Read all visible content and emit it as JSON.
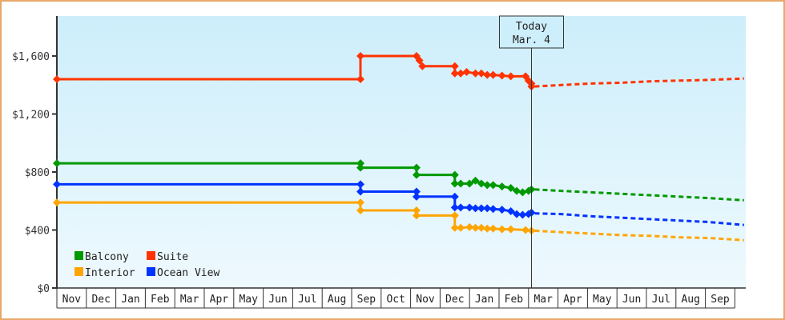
{
  "chart_data": {
    "type": "line",
    "title": "",
    "xlabel": "",
    "ylabel": "",
    "ylim": [
      0,
      1875
    ],
    "grid": false,
    "legend_position": "bottom-left inside plot",
    "y_ticks": [
      {
        "value": 0,
        "label": "$0"
      },
      {
        "value": 400,
        "label": "$400"
      },
      {
        "value": 800,
        "label": "$800"
      },
      {
        "value": 1200,
        "label": "$1,200"
      },
      {
        "value": 1600,
        "label": "$1,600"
      }
    ],
    "x_ticks": [
      "Nov",
      "Dec",
      "Jan",
      "Feb",
      "Mar",
      "Apr",
      "May",
      "Jun",
      "Jul",
      "Aug",
      "Sep",
      "Oct",
      "Nov",
      "Dec",
      "Jan",
      "Feb",
      "Mar",
      "Apr",
      "May",
      "Jun",
      "Jul",
      "Aug",
      "Sep"
    ],
    "annotation": {
      "label_line1": "Today",
      "label_line2": "Mar. 4",
      "x_month_index": 16.1
    },
    "series": [
      {
        "name": "Suite",
        "color": "#ff3300",
        "history": [
          [
            0,
            1440
          ],
          [
            10.3,
            1440
          ],
          [
            10.3,
            1600
          ],
          [
            12.2,
            1600
          ],
          [
            12.3,
            1570
          ],
          [
            12.4,
            1530
          ],
          [
            13.5,
            1530
          ],
          [
            13.5,
            1480
          ],
          [
            13.7,
            1480
          ],
          [
            13.9,
            1490
          ],
          [
            14.2,
            1480
          ],
          [
            14.4,
            1480
          ],
          [
            14.6,
            1470
          ],
          [
            14.8,
            1470
          ],
          [
            15.1,
            1465
          ],
          [
            15.4,
            1460
          ],
          [
            15.9,
            1460
          ],
          [
            16.0,
            1430
          ],
          [
            16.1,
            1410
          ],
          [
            16.1,
            1390
          ]
        ],
        "forecast": [
          [
            16.1,
            1390
          ],
          [
            17,
            1400
          ],
          [
            18,
            1410
          ],
          [
            19,
            1415
          ],
          [
            20,
            1425
          ],
          [
            21,
            1430
          ],
          [
            22,
            1435
          ],
          [
            23.2,
            1445
          ]
        ]
      },
      {
        "name": "Balcony",
        "color": "#009900",
        "history": [
          [
            0,
            860
          ],
          [
            10.3,
            860
          ],
          [
            10.3,
            830
          ],
          [
            12.2,
            830
          ],
          [
            12.2,
            780
          ],
          [
            13.5,
            780
          ],
          [
            13.5,
            720
          ],
          [
            13.7,
            720
          ],
          [
            14.0,
            720
          ],
          [
            14.2,
            740
          ],
          [
            14.4,
            720
          ],
          [
            14.6,
            710
          ],
          [
            14.8,
            710
          ],
          [
            15.1,
            700
          ],
          [
            15.4,
            690
          ],
          [
            15.6,
            670
          ],
          [
            15.8,
            660
          ],
          [
            16.0,
            670
          ],
          [
            16.1,
            680
          ]
        ],
        "forecast": [
          [
            16.1,
            680
          ],
          [
            17,
            670
          ],
          [
            18,
            660
          ],
          [
            19,
            650
          ],
          [
            20,
            640
          ],
          [
            21,
            630
          ],
          [
            22,
            620
          ],
          [
            23.2,
            605
          ]
        ]
      },
      {
        "name": "Ocean View",
        "color": "#0033ff",
        "history": [
          [
            0,
            715
          ],
          [
            10.3,
            715
          ],
          [
            10.3,
            665
          ],
          [
            12.2,
            665
          ],
          [
            12.2,
            630
          ],
          [
            13.5,
            630
          ],
          [
            13.5,
            555
          ],
          [
            13.7,
            555
          ],
          [
            14.0,
            555
          ],
          [
            14.2,
            550
          ],
          [
            14.4,
            550
          ],
          [
            14.6,
            550
          ],
          [
            14.8,
            545
          ],
          [
            15.1,
            540
          ],
          [
            15.4,
            530
          ],
          [
            15.6,
            510
          ],
          [
            15.8,
            505
          ],
          [
            16.0,
            510
          ],
          [
            16.1,
            520
          ]
        ],
        "forecast": [
          [
            16.1,
            515
          ],
          [
            17,
            510
          ],
          [
            18,
            495
          ],
          [
            19,
            485
          ],
          [
            20,
            475
          ],
          [
            21,
            465
          ],
          [
            22,
            455
          ],
          [
            23.2,
            435
          ]
        ]
      },
      {
        "name": "Interior",
        "color": "#ffa500",
        "history": [
          [
            0,
            590
          ],
          [
            10.3,
            590
          ],
          [
            10.3,
            535
          ],
          [
            12.2,
            535
          ],
          [
            12.2,
            500
          ],
          [
            13.5,
            500
          ],
          [
            13.5,
            415
          ],
          [
            13.7,
            415
          ],
          [
            14.0,
            420
          ],
          [
            14.2,
            415
          ],
          [
            14.4,
            415
          ],
          [
            14.6,
            410
          ],
          [
            14.8,
            410
          ],
          [
            15.1,
            405
          ],
          [
            15.4,
            405
          ],
          [
            15.9,
            400
          ],
          [
            16.1,
            395
          ]
        ],
        "forecast": [
          [
            16.1,
            395
          ],
          [
            17,
            385
          ],
          [
            18,
            375
          ],
          [
            19,
            365
          ],
          [
            20,
            360
          ],
          [
            21,
            350
          ],
          [
            22,
            345
          ],
          [
            23.2,
            330
          ]
        ]
      }
    ],
    "legend": [
      {
        "name": "Balcony",
        "color": "#009900"
      },
      {
        "name": "Suite",
        "color": "#ff3300"
      },
      {
        "name": "Interior",
        "color": "#ffa500"
      },
      {
        "name": "Ocean View",
        "color": "#0033ff"
      }
    ]
  }
}
